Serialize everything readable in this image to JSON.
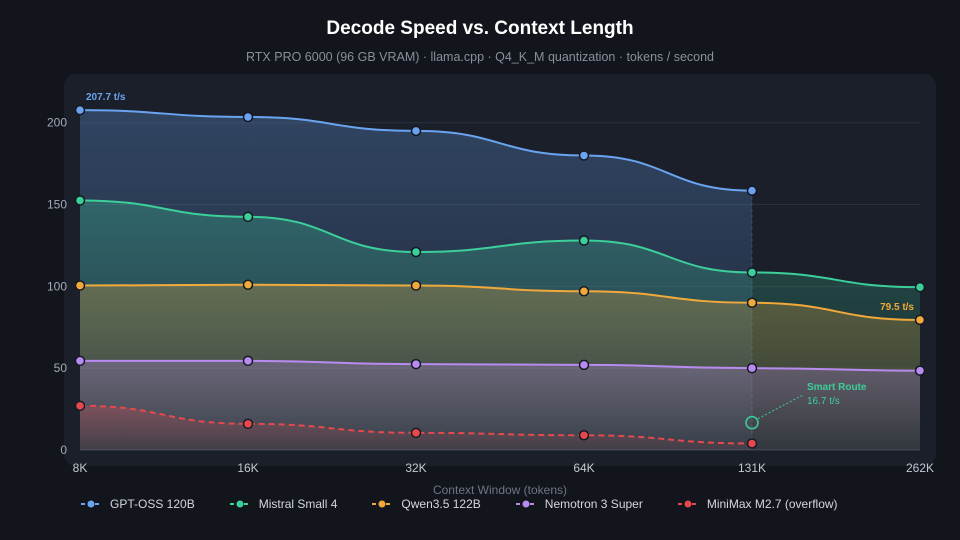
{
  "chart_data": {
    "type": "area",
    "title": "Decode Speed vs. Context Length",
    "subtitle": "RTX PRO 6000 (96 GB VRAM) · llama.cpp · Q4_K_M quantization · tokens / second",
    "xlabel": "Context Window (tokens)",
    "ylabel": "",
    "categories": [
      "8K",
      "16K",
      "32K",
      "64K",
      "131K",
      "262K"
    ],
    "ylim": [
      0,
      220
    ],
    "yticks": [
      "0",
      "50",
      "100",
      "150",
      "200"
    ],
    "grid": true,
    "legend_position": "bottom",
    "series": [
      {
        "name": "GPT-OSS 120B",
        "color": "#6aa4f0",
        "values": [
          207.7,
          203.5,
          195,
          180,
          158.5,
          null
        ],
        "dashed": false
      },
      {
        "name": "Mistral Small 4",
        "color": "#3ccf9a",
        "values": [
          152.5,
          142.5,
          121,
          128,
          108.5,
          99.5
        ],
        "dashed": false
      },
      {
        "name": "Qwen3.5 122B",
        "color": "#f2a93b",
        "values": [
          100.5,
          101,
          100.5,
          97,
          90,
          79.5
        ],
        "dashed": false
      },
      {
        "name": "Nemotron 3 Super",
        "color": "#b98bf0",
        "values": [
          54.5,
          54.5,
          52.5,
          52,
          50,
          48.5
        ],
        "dashed": false
      },
      {
        "name": "MiniMax M2.7 (overflow)",
        "color": "#e5484d",
        "values": [
          27,
          16,
          10.5,
          9,
          4,
          null
        ],
        "dashed": true
      }
    ],
    "annotations": [
      {
        "label": "207.7 t/s",
        "series": 0,
        "category": "8K",
        "color": "#6aa4f0"
      },
      {
        "label": "79.5 t/s",
        "series": 2,
        "category": "262K",
        "color": "#f2a93b"
      }
    ],
    "callout": {
      "title": "Smart Route",
      "value": "16.7 t/s",
      "category": "131K",
      "y": 16.7,
      "color": "#3ccf9a"
    }
  }
}
